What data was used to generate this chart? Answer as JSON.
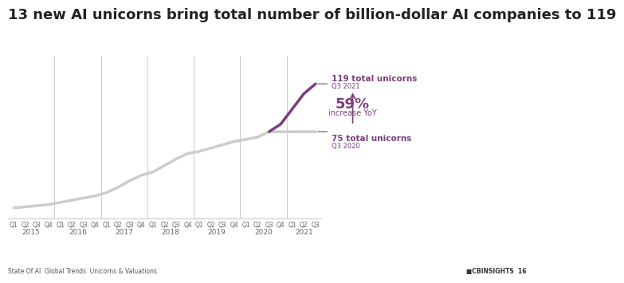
{
  "title": "13 new AI unicorns bring total number of billion-dollar AI companies to 119",
  "title_fontsize": 13,
  "title_fontweight": "bold",
  "title_color": "#222222",
  "background_color": "#ffffff",
  "footer_left": "State Of AI  Global Trends  Unicorns & Valuations",
  "footer_right": "■CBINSIGHTS  16",
  "x_labels": [
    "Q1",
    "Q2",
    "Q3",
    "Q4",
    "Q1",
    "Q2",
    "Q3",
    "Q4",
    "Q1",
    "Q2",
    "Q3",
    "Q4",
    "Q1",
    "Q2",
    "Q3",
    "Q4",
    "Q1",
    "Q2",
    "Q3",
    "Q4",
    "Q1",
    "Q2",
    "Q3",
    "Q4",
    "Q1",
    "Q2",
    "Q3"
  ],
  "year_labels": [
    "2015",
    "2016",
    "2017",
    "2018",
    "2019",
    "2020",
    "2021"
  ],
  "gray_values": [
    5,
    6,
    7,
    8,
    10,
    12,
    14,
    16,
    19,
    24,
    30,
    35,
    38,
    44,
    50,
    55,
    57,
    60,
    63,
    66,
    68,
    70,
    75,
    75,
    75,
    75,
    75
  ],
  "purple_values": [
    null,
    null,
    null,
    null,
    null,
    null,
    null,
    null,
    null,
    null,
    null,
    null,
    null,
    null,
    null,
    null,
    null,
    null,
    null,
    null,
    null,
    null,
    75,
    82,
    96,
    110,
    119
  ],
  "gray_color": "#cccccc",
  "purple_color": "#7b3f7e",
  "annotation_119_label": "119 total unicorns",
  "annotation_119_sublabel": "Q3 2021",
  "annotation_75_label": "75 total unicorns",
  "annotation_75_sublabel": "Q3 2020",
  "annotation_pct": "59%",
  "annotation_pct_label": "increase YoY",
  "annotation_color": "#7b3f7e"
}
